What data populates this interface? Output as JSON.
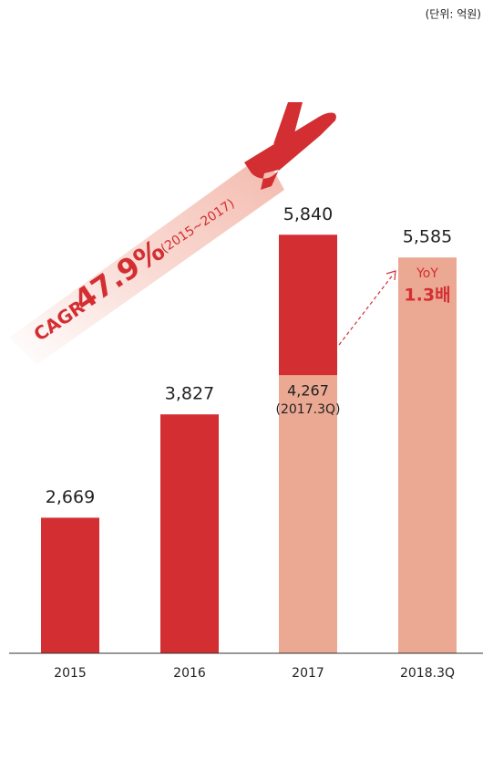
{
  "chart_data": {
    "type": "bar",
    "unit": "(단위: 억원)",
    "categories": [
      "2015",
      "2016",
      "2017",
      "2018.3Q"
    ],
    "series": [
      {
        "color": "#d32f33",
        "values": [
          2669,
          3827,
          5840,
          null
        ],
        "value_labels": [
          "2,669",
          "3,827",
          "5,840",
          null
        ]
      },
      {
        "color": "#eba893",
        "values": [
          null,
          null,
          4267,
          5585
        ],
        "value_labels": [
          null,
          null,
          "4,267",
          "5,585"
        ],
        "sublabels": [
          null,
          null,
          "(2017.3Q)",
          null
        ]
      }
    ],
    "ylim": [
      1150,
      8000
    ],
    "annotations": {
      "cagr": "CAGR",
      "cagr_value": "47.9%",
      "cagr_period": "(2015~2017)",
      "yoy": "YoY",
      "yoy_value": "1.3배"
    }
  }
}
